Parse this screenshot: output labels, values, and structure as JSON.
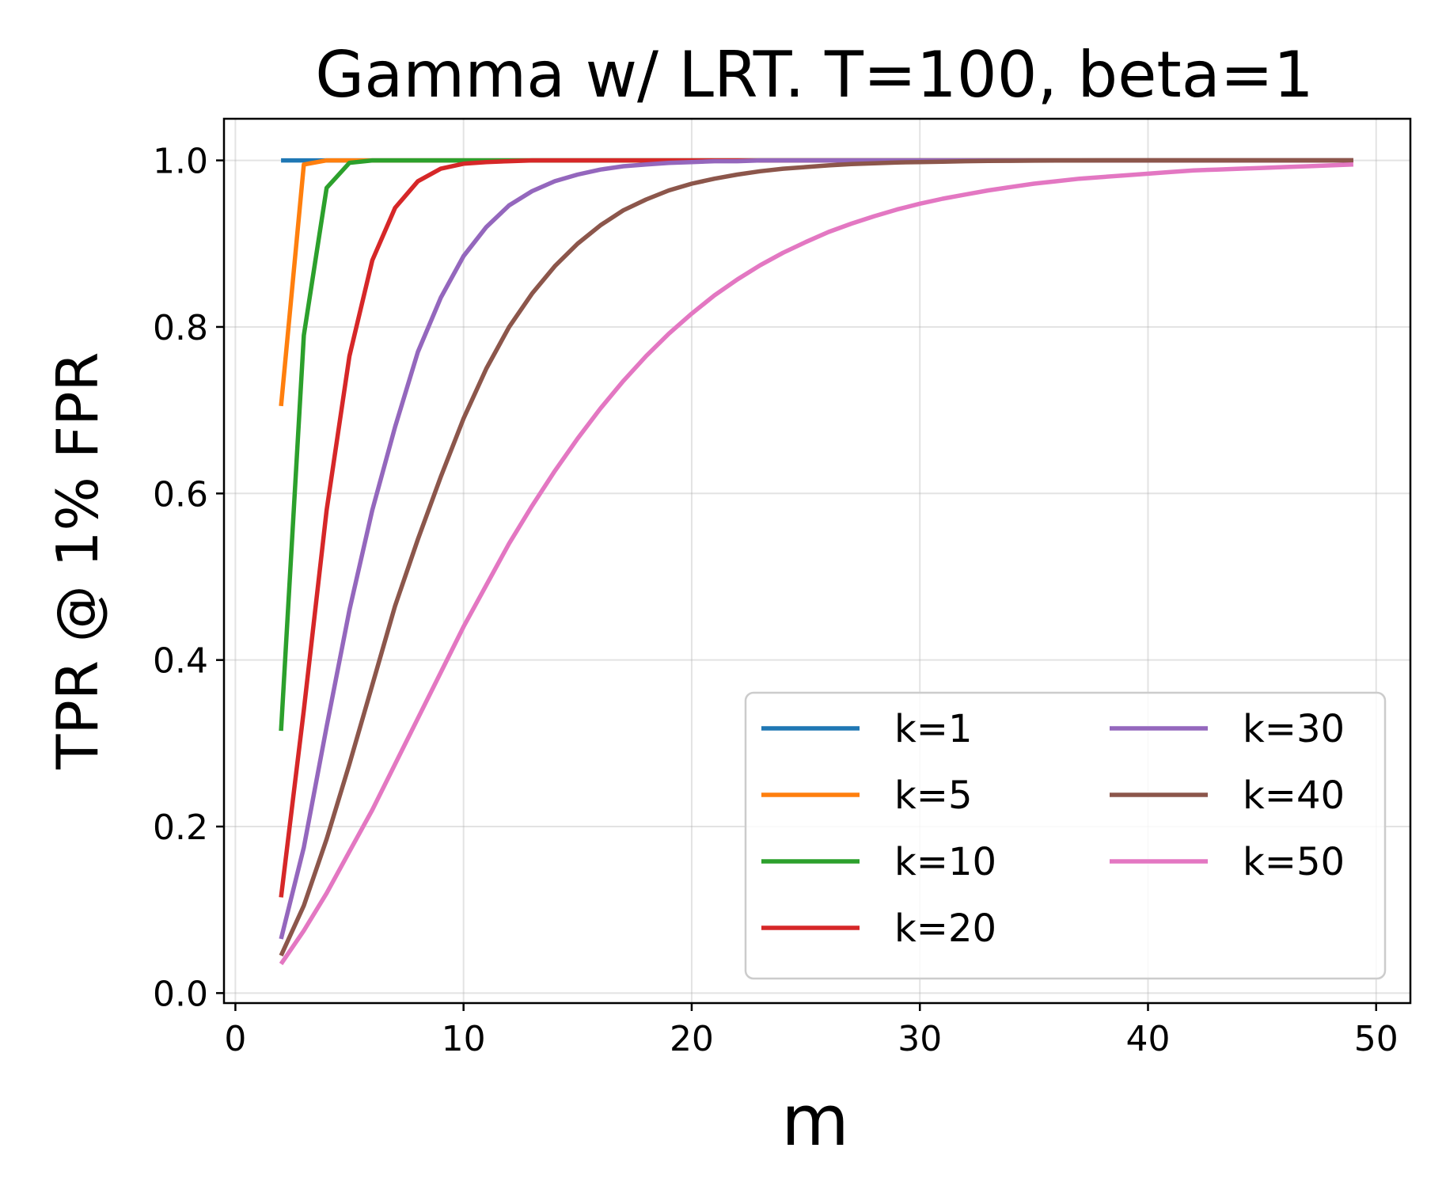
{
  "chart_data": {
    "type": "line",
    "title": "Gamma w/ LRT. T=100, beta=1",
    "xlabel": "m",
    "ylabel": "TPR @ 1% FPR",
    "xlim": [
      -0.5,
      51.5
    ],
    "ylim": [
      -0.012,
      1.05
    ],
    "xticks": [
      0,
      10,
      20,
      30,
      40,
      50
    ],
    "xtick_labels": [
      "0",
      "10",
      "20",
      "30",
      "40",
      "50"
    ],
    "yticks": [
      0.0,
      0.2,
      0.4,
      0.6,
      0.8,
      1.0
    ],
    "ytick_labels": [
      "0.0",
      "0.2",
      "0.4",
      "0.6",
      "0.8",
      "1.0"
    ],
    "grid": true,
    "legend": {
      "location": "lower right",
      "columns": 2
    },
    "x_range": {
      "start": 2,
      "end": 49,
      "step": 1
    },
    "series": [
      {
        "name": "k=1",
        "color": "#1f77b4",
        "values": [
          1.0,
          1.0,
          1.0,
          1.0,
          1.0,
          1.0,
          1.0,
          1.0,
          1.0,
          1.0,
          1.0,
          1.0,
          1.0,
          1.0,
          1.0,
          1.0,
          1.0,
          1.0,
          1.0,
          1.0,
          1.0,
          1.0,
          1.0,
          1.0,
          1.0,
          1.0,
          1.0,
          1.0,
          1.0,
          1.0,
          1.0,
          1.0,
          1.0,
          1.0,
          1.0,
          1.0,
          1.0,
          1.0,
          1.0,
          1.0,
          1.0,
          1.0,
          1.0,
          1.0,
          1.0,
          1.0,
          1.0,
          1.0
        ]
      },
      {
        "name": "k=5",
        "color": "#ff7f0e",
        "values": [
          0.705,
          0.995,
          1.0,
          1.0,
          1.0,
          1.0,
          1.0,
          1.0,
          1.0,
          1.0,
          1.0,
          1.0,
          1.0,
          1.0,
          1.0,
          1.0,
          1.0,
          1.0,
          1.0,
          1.0,
          1.0,
          1.0,
          1.0,
          1.0,
          1.0,
          1.0,
          1.0,
          1.0,
          1.0,
          1.0,
          1.0,
          1.0,
          1.0,
          1.0,
          1.0,
          1.0,
          1.0,
          1.0,
          1.0,
          1.0,
          1.0,
          1.0,
          1.0,
          1.0,
          1.0,
          1.0,
          1.0,
          1.0
        ]
      },
      {
        "name": "k=10",
        "color": "#2ca02c",
        "values": [
          0.315,
          0.79,
          0.967,
          0.997,
          1.0,
          1.0,
          1.0,
          1.0,
          1.0,
          1.0,
          1.0,
          1.0,
          1.0,
          1.0,
          1.0,
          1.0,
          1.0,
          1.0,
          1.0,
          1.0,
          1.0,
          1.0,
          1.0,
          1.0,
          1.0,
          1.0,
          1.0,
          1.0,
          1.0,
          1.0,
          1.0,
          1.0,
          1.0,
          1.0,
          1.0,
          1.0,
          1.0,
          1.0,
          1.0,
          1.0,
          1.0,
          1.0,
          1.0,
          1.0,
          1.0,
          1.0,
          1.0,
          1.0
        ]
      },
      {
        "name": "k=20",
        "color": "#d62728",
        "values": [
          0.115,
          0.34,
          0.58,
          0.765,
          0.88,
          0.943,
          0.975,
          0.99,
          0.996,
          0.998,
          0.999,
          1.0,
          1.0,
          1.0,
          1.0,
          1.0,
          1.0,
          1.0,
          1.0,
          1.0,
          1.0,
          1.0,
          1.0,
          1.0,
          1.0,
          1.0,
          1.0,
          1.0,
          1.0,
          1.0,
          1.0,
          1.0,
          1.0,
          1.0,
          1.0,
          1.0,
          1.0,
          1.0,
          1.0,
          1.0,
          1.0,
          1.0,
          1.0,
          1.0,
          1.0,
          1.0,
          1.0,
          1.0
        ]
      },
      {
        "name": "k=30",
        "color": "#9467bd",
        "values": [
          0.065,
          0.175,
          0.32,
          0.46,
          0.58,
          0.68,
          0.77,
          0.835,
          0.885,
          0.92,
          0.946,
          0.963,
          0.975,
          0.983,
          0.989,
          0.993,
          0.995,
          0.997,
          0.998,
          0.999,
          0.999,
          1.0,
          1.0,
          1.0,
          1.0,
          1.0,
          1.0,
          1.0,
          1.0,
          1.0,
          1.0,
          1.0,
          1.0,
          1.0,
          1.0,
          1.0,
          1.0,
          1.0,
          1.0,
          1.0,
          1.0,
          1.0,
          1.0,
          1.0,
          1.0,
          1.0,
          1.0,
          1.0
        ]
      },
      {
        "name": "k=40",
        "color": "#8c564b",
        "values": [
          0.045,
          0.105,
          0.185,
          0.275,
          0.37,
          0.465,
          0.545,
          0.62,
          0.69,
          0.75,
          0.8,
          0.84,
          0.873,
          0.9,
          0.922,
          0.94,
          0.953,
          0.964,
          0.972,
          0.978,
          0.983,
          0.987,
          0.99,
          0.992,
          0.994,
          0.9955,
          0.9965,
          0.9975,
          0.998,
          0.9985,
          0.999,
          0.9993,
          0.9995,
          0.9997,
          0.9998,
          0.9999,
          1.0,
          1.0,
          1.0,
          1.0,
          1.0,
          1.0,
          1.0,
          1.0,
          1.0,
          1.0,
          1.0,
          1.0
        ]
      },
      {
        "name": "k=50",
        "color": "#e377c2",
        "values": [
          0.035,
          0.075,
          0.12,
          0.17,
          0.22,
          0.275,
          0.33,
          0.385,
          0.44,
          0.49,
          0.54,
          0.585,
          0.627,
          0.666,
          0.702,
          0.735,
          0.765,
          0.792,
          0.816,
          0.838,
          0.857,
          0.874,
          0.889,
          0.902,
          0.914,
          0.924,
          0.933,
          0.941,
          0.948,
          0.954,
          0.959,
          0.964,
          0.968,
          0.972,
          0.975,
          0.978,
          0.98,
          0.982,
          0.984,
          0.986,
          0.988,
          0.989,
          0.99,
          0.991,
          0.992,
          0.993,
          0.994,
          0.995
        ]
      }
    ]
  }
}
